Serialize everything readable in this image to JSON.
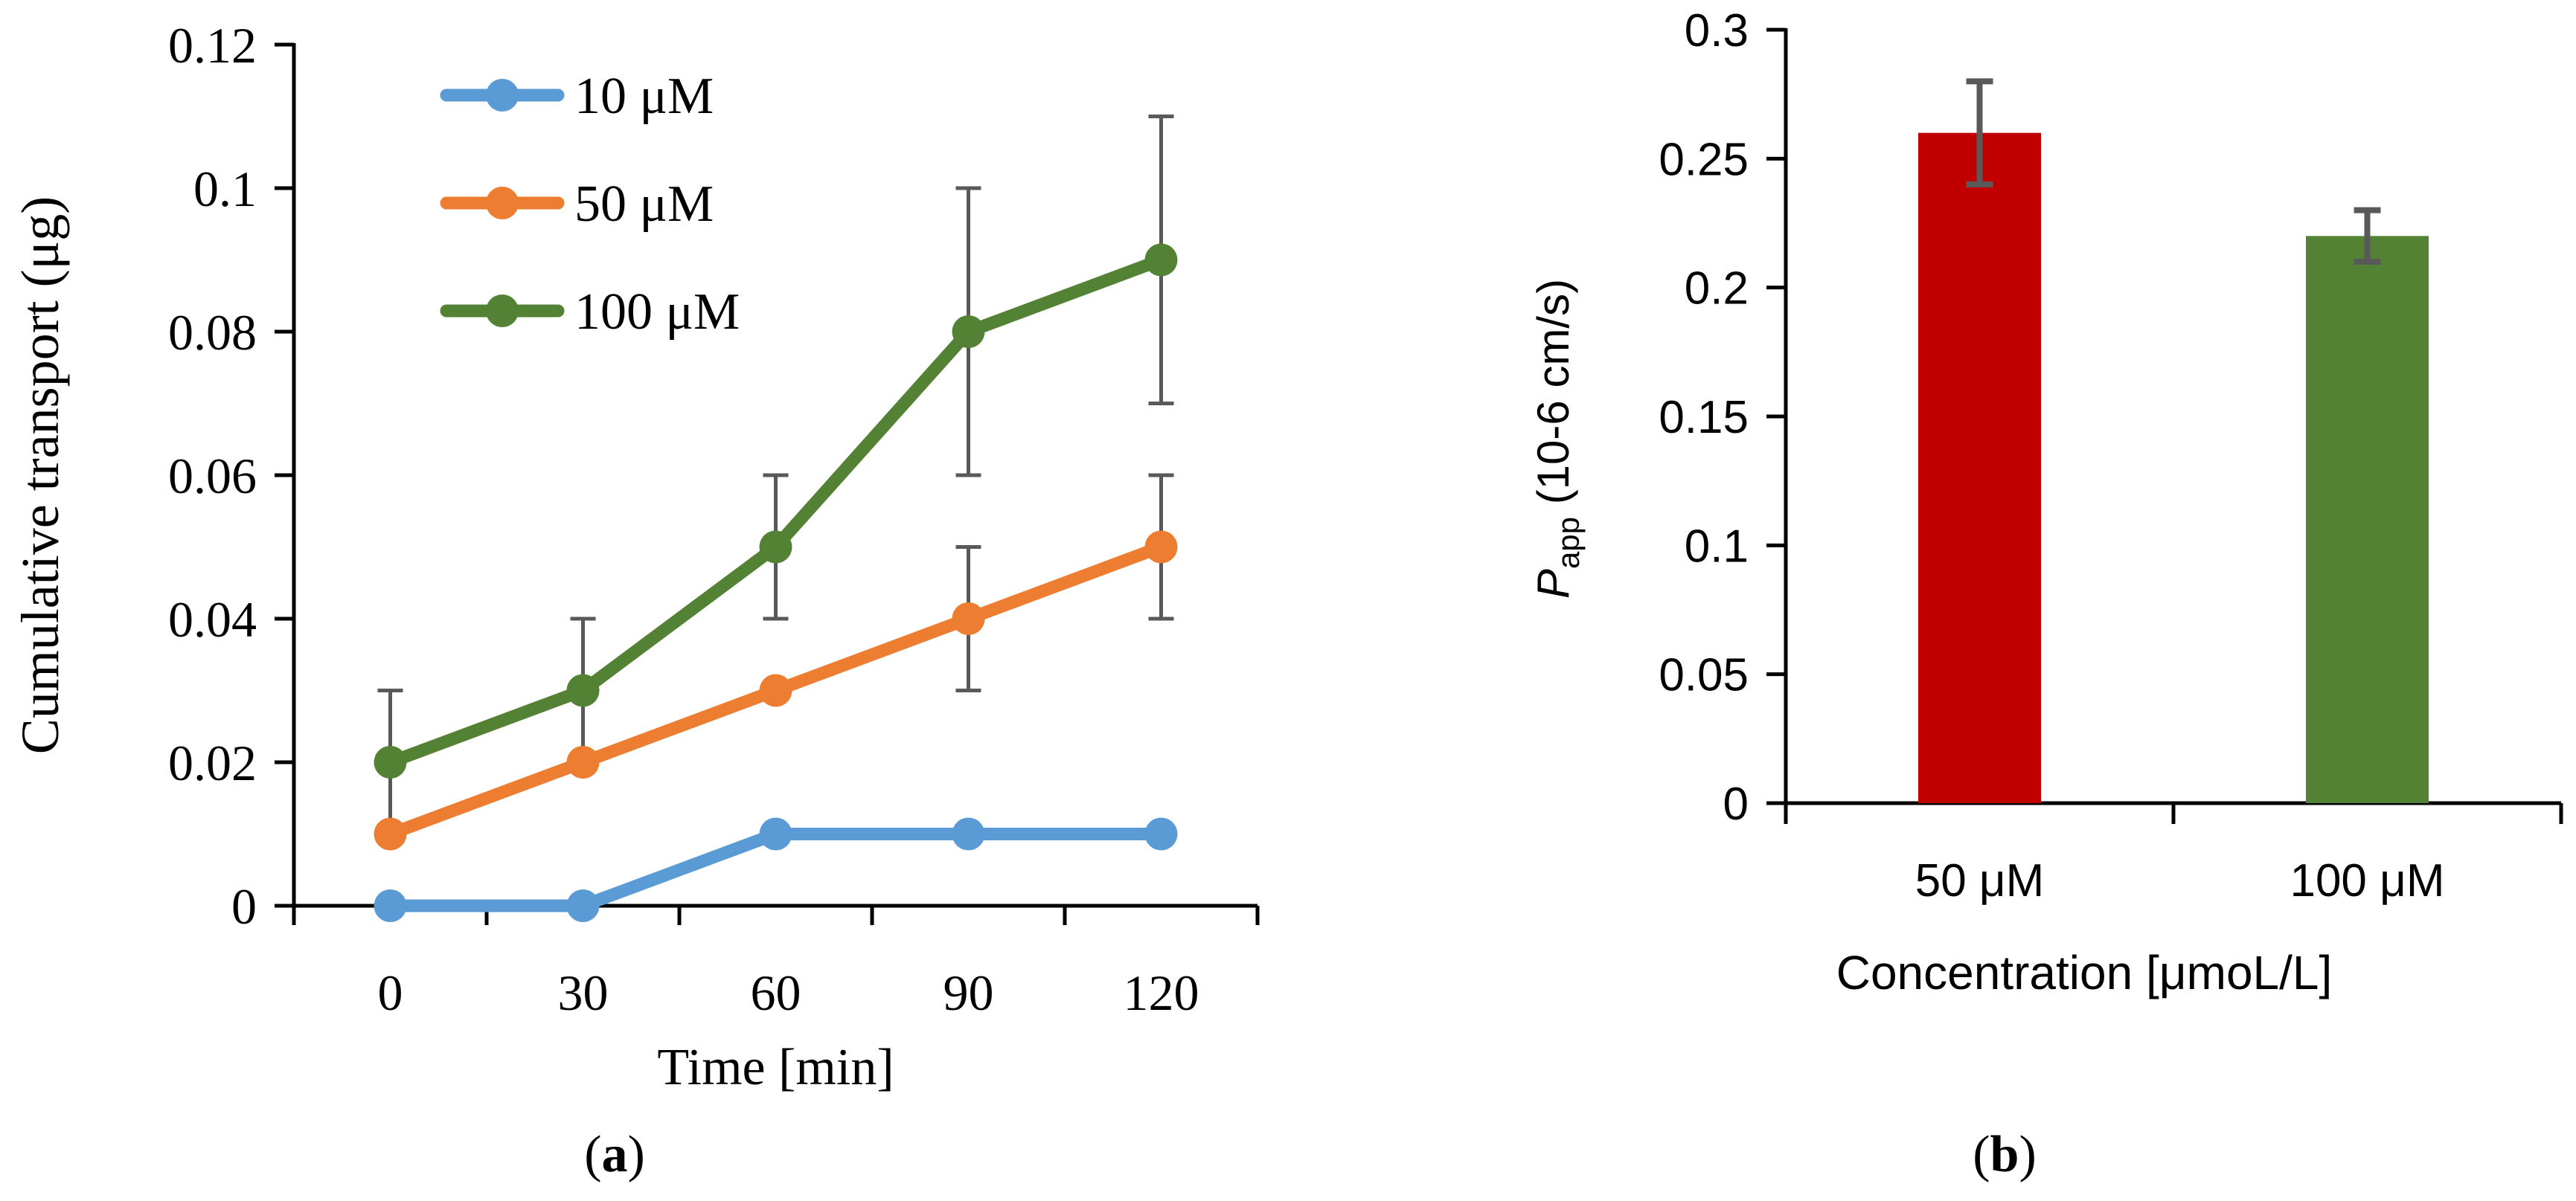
{
  "chart_data": [
    {
      "panel": "a",
      "type": "line",
      "ylabel": "Cumulative transport (μg)",
      "xlabel": "Time [min]",
      "xcategories": [
        "0",
        "30",
        "60",
        "90",
        "120"
      ],
      "ylim": [
        0,
        0.12
      ],
      "yticks": [
        "0",
        "0.02",
        "0.04",
        "0.06",
        "0.08",
        "0.1",
        "0.12"
      ],
      "legend_position": "top-left",
      "series": [
        {
          "name": "10  μM",
          "color": "#5B9BD5",
          "values": [
            0,
            0,
            0.01,
            0.01,
            0.01
          ],
          "errors": [
            null,
            null,
            null,
            null,
            null
          ]
        },
        {
          "name": "50  μM",
          "color": "#ED7D31",
          "values": [
            0.01,
            0.02,
            0.03,
            0.04,
            0.05
          ],
          "errors": [
            null,
            null,
            null,
            0.01,
            0.01
          ]
        },
        {
          "name": "100  μM",
          "color": "#548235",
          "values": [
            0.02,
            0.03,
            0.05,
            0.08,
            0.09
          ],
          "errors": [
            0.01,
            0.01,
            0.01,
            0.02,
            0.02
          ]
        }
      ],
      "caption": {
        "prefix": "(",
        "letter": "a",
        "suffix": ")"
      }
    },
    {
      "panel": "b",
      "type": "bar",
      "ylabel": {
        "main": "P",
        "sub": "app",
        "rest": " (10-6 cm/s)"
      },
      "xlabel": "Concentration [μmoL/L]",
      "categories": [
        "50  μM",
        "100  μM"
      ],
      "values": [
        0.26,
        0.22
      ],
      "errors": [
        0.02,
        0.01
      ],
      "colors": [
        "#C00000",
        "#548235"
      ],
      "ylim": [
        0,
        0.3
      ],
      "yticks": [
        "0",
        "0.05",
        "0.1",
        "0.15",
        "0.2",
        "0.25",
        "0.3"
      ],
      "caption": {
        "prefix": "(",
        "letter": "b",
        "suffix": ")"
      }
    }
  ]
}
